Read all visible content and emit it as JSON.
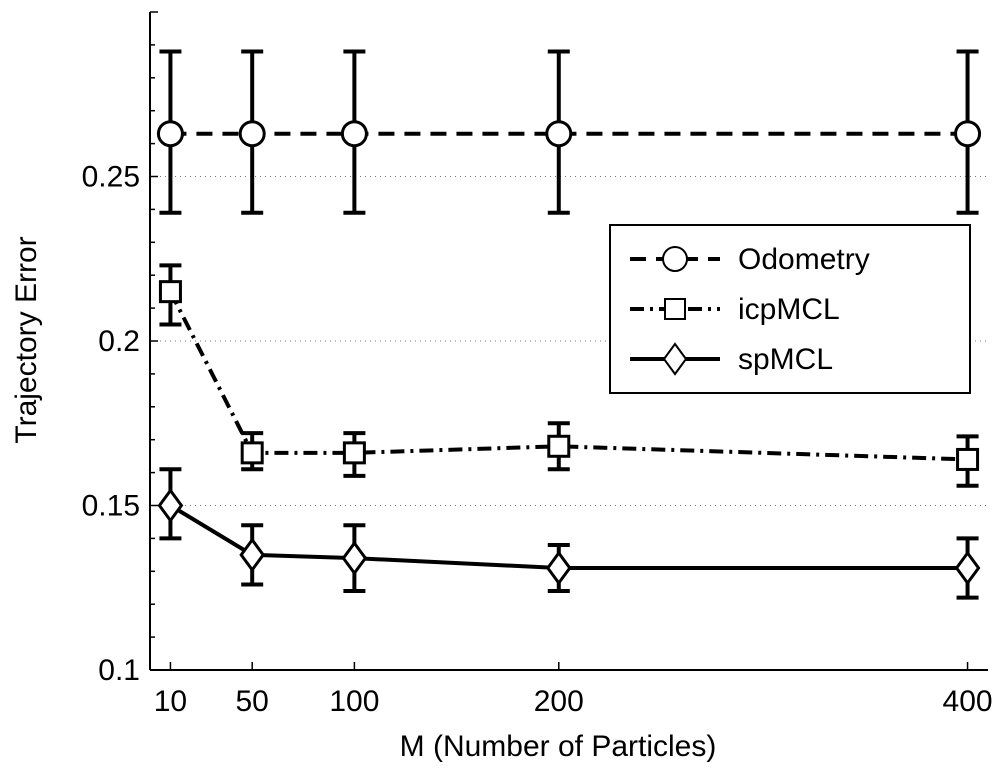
{
  "chart_data": {
    "type": "line",
    "xlabel": "M (Number of Particles)",
    "ylabel": "Trajectory Error",
    "x": [
      10,
      50,
      100,
      200,
      400
    ],
    "xticks": [
      "10",
      "50",
      "100",
      "200",
      "400"
    ],
    "yticks": [
      "0.1",
      "0.15",
      "0.2",
      "0.25"
    ],
    "xlim": [
      0,
      410
    ],
    "ylim": [
      0.1,
      0.3
    ],
    "grid": "horizontal dotted",
    "legend_position": "right",
    "series": [
      {
        "name": "Odometry",
        "marker": "circle",
        "line_style": "dashed",
        "values": [
          0.263,
          0.263,
          0.263,
          0.263,
          0.263
        ],
        "err_low": [
          0.239,
          0.239,
          0.239,
          0.239,
          0.239
        ],
        "err_high": [
          0.288,
          0.288,
          0.288,
          0.288,
          0.288
        ]
      },
      {
        "name": "icpMCL",
        "marker": "square",
        "line_style": "dash-dot",
        "values": [
          0.215,
          0.166,
          0.166,
          0.168,
          0.164
        ],
        "err_low": [
          0.205,
          0.161,
          0.159,
          0.161,
          0.156
        ],
        "err_high": [
          0.223,
          0.172,
          0.172,
          0.175,
          0.171
        ]
      },
      {
        "name": "spMCL",
        "marker": "diamond",
        "line_style": "solid",
        "values": [
          0.15,
          0.135,
          0.134,
          0.131,
          0.131
        ],
        "err_low": [
          0.14,
          0.126,
          0.124,
          0.124,
          0.122
        ],
        "err_high": [
          0.161,
          0.144,
          0.144,
          0.138,
          0.14
        ]
      }
    ]
  }
}
